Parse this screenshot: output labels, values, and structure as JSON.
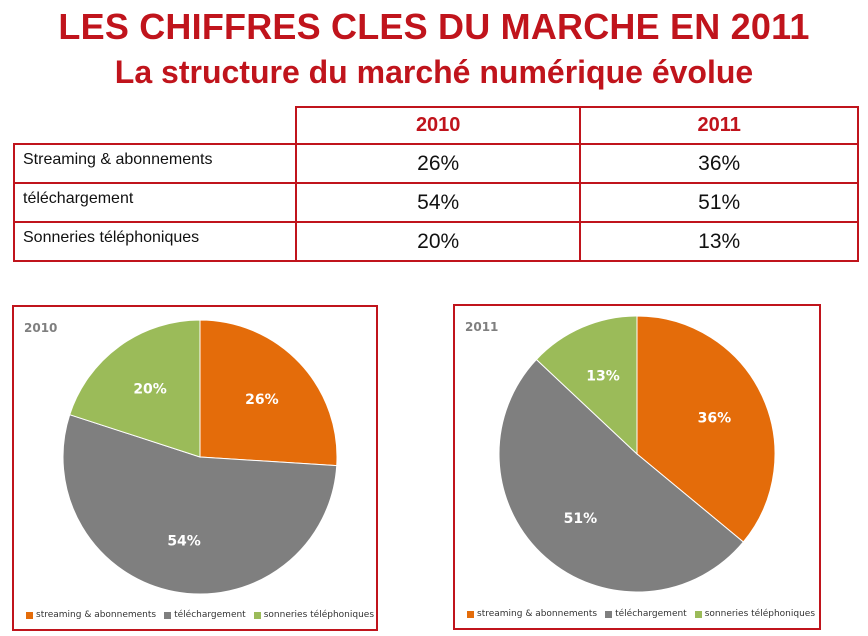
{
  "header": {
    "title": "LES CHIFFRES CLES DU MARCHE EN 2011",
    "subtitle": "La structure du marché numérique évolue"
  },
  "table": {
    "columns": [
      "2010",
      "2011"
    ],
    "rows": [
      {
        "label": "Streaming & abonnements",
        "values": [
          "26%",
          "36%"
        ]
      },
      {
        "label": "téléchargement",
        "values": [
          "54%",
          "51%"
        ]
      },
      {
        "label": "Sonneries téléphoniques",
        "values": [
          "20%",
          "13%"
        ]
      }
    ]
  },
  "chart_data": [
    {
      "type": "pie",
      "title": "2010",
      "categories": [
        "streaming & abonnements",
        "téléchargement",
        "sonneries téléphoniques"
      ],
      "values": [
        26,
        54,
        20
      ],
      "labels": [
        "26%",
        "54%",
        "20%"
      ],
      "colors": [
        "#e46c0a",
        "#7f7f7f",
        "#9bbb59"
      ],
      "legend": "bottom"
    },
    {
      "type": "pie",
      "title": "2011",
      "categories": [
        "streaming & abonnements",
        "téléchargement",
        "sonneries téléphoniques"
      ],
      "values": [
        36,
        51,
        13
      ],
      "labels": [
        "36%",
        "51%",
        "13%"
      ],
      "colors": [
        "#e46c0a",
        "#7f7f7f",
        "#9bbb59"
      ],
      "legend": "bottom"
    }
  ]
}
